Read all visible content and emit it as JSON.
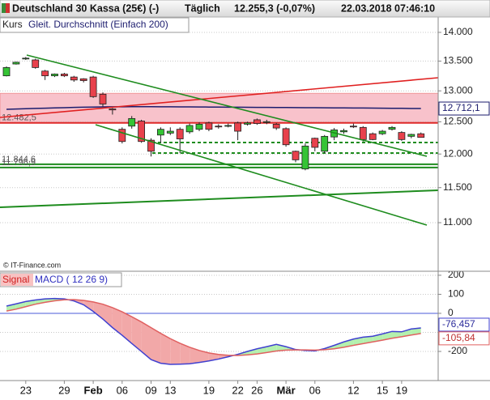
{
  "header": {
    "instrument": "Deutschland 30 Kassa (25€) (-)",
    "interval": "Täglich",
    "price": "12.255,3 (-0,07%)",
    "timestamp": "22.03.2018 07:46:10"
  },
  "source": "© IT-Finance.com",
  "chart_data": [
    {
      "type": "candlestick",
      "categories": [
        null,
        null,
        "23",
        null,
        null,
        null,
        "29",
        null,
        null,
        "Feb",
        null,
        null,
        "06",
        null,
        null,
        "09",
        null,
        "13",
        null,
        null,
        null,
        "19",
        null,
        null,
        "22",
        null,
        "26",
        null,
        null,
        "Mär",
        null,
        null,
        "06",
        null,
        null,
        null,
        "12",
        null,
        null,
        "15",
        null,
        "19",
        null,
        null
      ],
      "series": [
        {
          "name": "Kurs",
          "up_color": "#35c435",
          "down_color": "#e8414c",
          "open": [
            13250,
            13450,
            13540,
            13520,
            13330,
            13250,
            13280,
            13230,
            13200,
            13230,
            12945,
            12705,
            12382,
            12432,
            12512,
            12212,
            12292,
            12322,
            12382,
            12342,
            12382,
            12482,
            12432,
            12432,
            12482,
            12462,
            12532,
            12492,
            12462,
            12392,
            12042,
            11775,
            12242,
            12042,
            12262,
            12342,
            12432,
            12412,
            12312,
            12312,
            12382,
            12332,
            12272,
            12312
          ],
          "high": [
            13410,
            13490,
            13570,
            13540,
            13350,
            13290,
            13300,
            13250,
            13210,
            13250,
            12975,
            12720,
            12412,
            12592,
            12532,
            12242,
            12412,
            12412,
            12412,
            12472,
            12492,
            12502,
            12462,
            12472,
            12502,
            12502,
            12552,
            12532,
            12482,
            12412,
            12052,
            12162,
            12252,
            12292,
            12402,
            12392,
            12472,
            12432,
            12332,
            12372,
            12432,
            12352,
            12312,
            12332
          ],
          "low": [
            13240,
            13440,
            13520,
            13370,
            13180,
            13230,
            13230,
            13150,
            13140,
            12885,
            12745,
            12615,
            12162,
            12392,
            12172,
            11962,
            12172,
            12292,
            12012,
            12312,
            12352,
            12352,
            12392,
            12412,
            12212,
            12442,
            12452,
            12462,
            12372,
            12112,
            11875,
            11755,
            12042,
            12012,
            12212,
            12312,
            12402,
            12192,
            12212,
            12292,
            12362,
            12202,
            12242,
            12252
          ],
          "close": [
            13390,
            13480,
            13550,
            13390,
            13250,
            13280,
            13250,
            13180,
            13170,
            12905,
            12785,
            12690,
            12192,
            12552,
            12192,
            12042,
            12382,
            12352,
            12232,
            12442,
            12462,
            12382,
            12422,
            12442,
            12352,
            12482,
            12472,
            12502,
            12402,
            12142,
            11912,
            12122,
            12102,
            12272,
            12372,
            12362,
            12422,
            12222,
            12222,
            12352,
            12412,
            12222,
            12302,
            12255.3
          ]
        },
        {
          "name": "Gleit. Durchschnitt (Einfach 200)",
          "color": "#1c1c6e",
          "values": [
            12700,
            12705,
            12710,
            12714,
            12718,
            12722,
            12726,
            12730,
            12733,
            12736,
            12738,
            12740,
            12741,
            12742,
            12742,
            12742,
            12741,
            12740,
            12739,
            12738,
            12737,
            12736,
            12735,
            12734,
            12733,
            12732,
            12731,
            12730,
            12729,
            12728,
            12727,
            12726,
            12725,
            12724,
            12723,
            12722,
            12721,
            12720,
            12719,
            12718,
            12716,
            12715,
            12713,
            12712.1
          ],
          "value_labels": [
            null,
            null,
            null,
            null,
            null,
            null,
            null,
            null,
            null,
            null,
            null,
            null,
            null,
            null,
            null,
            null,
            null,
            null,
            null,
            null,
            null,
            null,
            null,
            null,
            null,
            null,
            null,
            null,
            null,
            null,
            null,
            null,
            null,
            null,
            null,
            null,
            null,
            null,
            null,
            null,
            null,
            null,
            null,
            "12.712,1"
          ]
        }
      ],
      "log_scale": true,
      "ylim": [
        10450,
        14290
      ],
      "yticks": [
        {
          "value": 11000,
          "label": "11.000"
        },
        {
          "value": 11500,
          "label": "11.500"
        },
        {
          "value": 12000,
          "label": "12.000"
        },
        {
          "value": 12500,
          "label": "12.500"
        },
        {
          "value": 13000,
          "label": "13.000"
        },
        {
          "value": 13500,
          "label": "13.500"
        },
        {
          "value": 14000,
          "label": "14.000"
        }
      ],
      "grid": true,
      "zone": {
        "values": [
          12490,
          12960
        ],
        "color": "#f8c2cb"
      },
      "levels": [
        {
          "value": 12482.5,
          "label": "12.482,5",
          "color": "#e02828"
        },
        {
          "value": 11844.6,
          "label": "11.844,6",
          "color": "#1e8c1e"
        },
        {
          "value": 11796.9,
          "label": "11.796,9",
          "color": "#1e8c1e"
        },
        {
          "value": 12177,
          "color": "#1e8c1e",
          "dashed": true
        },
        {
          "value": 12015,
          "color": "#1e8c1e",
          "dashed": true
        }
      ]
    },
    {
      "type": "macd",
      "series": [
        {
          "name": "MACD ( 12 26 9)",
          "color": "#4040d0",
          "values": [
            38,
            50,
            62,
            70,
            76,
            78,
            76,
            65,
            45,
            10,
            -30,
            -75,
            -115,
            -158,
            -200,
            -243,
            -262,
            -268,
            -267,
            -265,
            -258,
            -250,
            -240,
            -228,
            -215,
            -200,
            -186,
            -175,
            -163,
            -175,
            -190,
            -195,
            -197,
            -185,
            -168,
            -150,
            -135,
            -125,
            -120,
            -108,
            -95,
            -97,
            -82,
            -76.457
          ],
          "value_labels": [
            null,
            null,
            null,
            null,
            null,
            null,
            null,
            null,
            null,
            null,
            null,
            null,
            null,
            null,
            null,
            null,
            null,
            null,
            null,
            null,
            null,
            null,
            null,
            null,
            null,
            null,
            null,
            null,
            null,
            null,
            null,
            null,
            null,
            null,
            null,
            null,
            null,
            null,
            null,
            null,
            null,
            null,
            null,
            "-76,457"
          ]
        },
        {
          "name": "Signal",
          "color": "#e06060",
          "values": [
            12,
            22,
            35,
            48,
            58,
            66,
            71,
            72,
            68,
            60,
            48,
            30,
            8,
            -18,
            -45,
            -75,
            -105,
            -133,
            -157,
            -178,
            -195,
            -208,
            -216,
            -220,
            -221,
            -218,
            -213,
            -206,
            -198,
            -193,
            -192,
            -192,
            -193,
            -191,
            -186,
            -178,
            -168,
            -159,
            -150,
            -141,
            -131,
            -123,
            -114,
            -105.84
          ],
          "value_labels": [
            null,
            null,
            null,
            null,
            null,
            null,
            null,
            null,
            null,
            null,
            null,
            null,
            null,
            null,
            null,
            null,
            null,
            null,
            null,
            null,
            null,
            null,
            null,
            null,
            null,
            null,
            null,
            null,
            null,
            null,
            null,
            null,
            null,
            null,
            null,
            null,
            null,
            null,
            null,
            null,
            null,
            null,
            null,
            "-105,84"
          ]
        }
      ],
      "fill_colors": {
        "positive": "#b4f0ae",
        "negative": "#f2a8a8"
      },
      "zero_line_color": "#4a5ad8",
      "ylim": [
        -353,
        221
      ],
      "yticks": [
        -200,
        -100,
        0,
        100,
        200
      ],
      "grid": true
    }
  ]
}
